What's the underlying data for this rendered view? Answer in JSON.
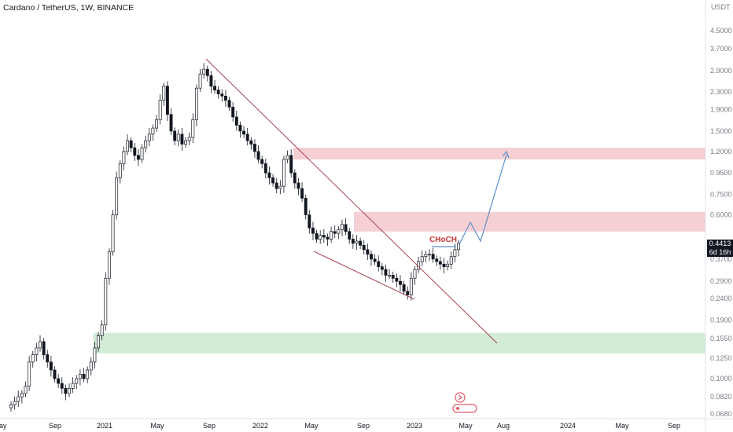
{
  "header": {
    "title": "Cardano / TetherUS, 1W, BINANCE"
  },
  "price_axis": {
    "unit": "USDT"
  },
  "last_price": {
    "value": "0.4413",
    "countdown": "6d 16h"
  },
  "annotation": {
    "text": "CHoCH"
  },
  "colors": {
    "up": "#ffffff",
    "down": "#131722",
    "candle_border": "#131722",
    "supply_zone": "#f4c7cc",
    "demand_zone": "#c9e7cd",
    "trendline": "#a44450",
    "projection": "#5b8ec9",
    "choch": "#c2343c"
  },
  "chart_data": {
    "type": "candlestick",
    "title": "Cardano / TetherUS, 1W, BINANCE",
    "yscale": "log",
    "ylim": [
      0.064,
      5.0
    ],
    "y_ticks": [
      "4.5000",
      "3.7000",
      "2.9000",
      "2.3000",
      "1.9000",
      "1.5000",
      "1.2000",
      "0.9500",
      "0.7500",
      "0.6000",
      "0.4413",
      "0.3700",
      "0.2900",
      "0.2400",
      "0.1900",
      "0.1550",
      "0.1250",
      "0.1000",
      "0.0820",
      "0.0680"
    ],
    "x_ticks": [
      "May",
      "Sep",
      "2021",
      "May",
      "Sep",
      "2022",
      "May",
      "Sep",
      "2023",
      "May",
      "Aug",
      "2024",
      "May",
      "Sep"
    ],
    "candles_close": [
      0.075,
      0.078,
      0.082,
      0.085,
      0.092,
      0.12,
      0.13,
      0.14,
      0.15,
      0.13,
      0.12,
      0.11,
      0.1,
      0.095,
      0.09,
      0.085,
      0.09,
      0.095,
      0.1,
      0.105,
      0.1,
      0.11,
      0.12,
      0.14,
      0.16,
      0.18,
      0.3,
      0.4,
      0.6,
      0.9,
      1.05,
      1.2,
      1.35,
      1.25,
      1.15,
      1.1,
      1.25,
      1.35,
      1.45,
      1.55,
      1.7,
      2.1,
      2.45,
      1.8,
      1.5,
      1.35,
      1.45,
      1.3,
      1.35,
      1.4,
      1.7,
      2.4,
      2.8,
      2.95,
      2.75,
      2.45,
      2.35,
      2.25,
      2.2,
      2.1,
      1.95,
      1.75,
      1.6,
      1.5,
      1.45,
      1.35,
      1.3,
      1.2,
      1.1,
      1.05,
      0.95,
      0.9,
      0.85,
      0.8,
      0.82,
      1.1,
      1.15,
      0.95,
      0.85,
      0.8,
      0.72,
      0.6,
      0.52,
      0.49,
      0.46,
      0.48,
      0.47,
      0.46,
      0.5,
      0.49,
      0.51,
      0.54,
      0.5,
      0.46,
      0.44,
      0.45,
      0.43,
      0.41,
      0.39,
      0.37,
      0.36,
      0.34,
      0.33,
      0.31,
      0.31,
      0.3,
      0.29,
      0.28,
      0.26,
      0.25,
      0.3,
      0.33,
      0.36,
      0.38,
      0.39,
      0.39,
      0.37,
      0.36,
      0.35,
      0.34,
      0.35,
      0.38,
      0.41,
      0.44
    ],
    "zones": [
      {
        "type": "supply",
        "from": 1.1,
        "to": 1.25
      },
      {
        "type": "supply",
        "from": 0.5,
        "to": 0.62
      },
      {
        "type": "demand",
        "from": 0.132,
        "to": 0.165
      }
    ],
    "choch_level": 0.4,
    "projection_path": [
      0.44,
      0.55,
      0.46,
      1.2
    ]
  }
}
